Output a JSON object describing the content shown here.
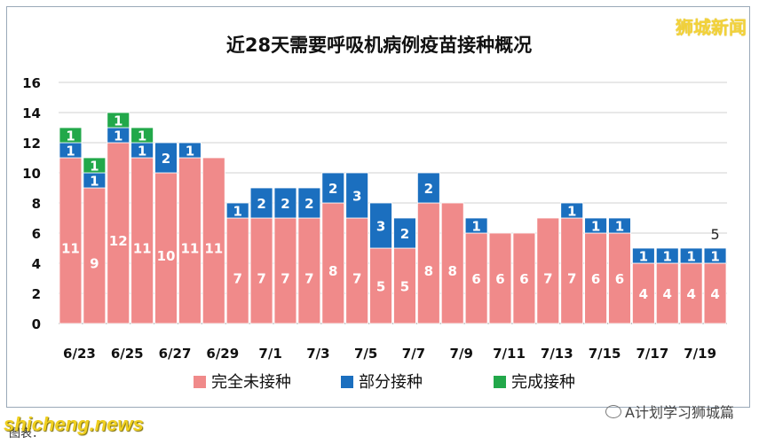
{
  "watermark_top": "狮城新闻",
  "watermark_bottom": "shicheng.news",
  "footer_left": "图表：",
  "footer_right": "A计划学习狮城篇",
  "colors": {
    "unvaccinated": "#f08a8a",
    "partial": "#1b6fbf",
    "full": "#22a84a",
    "grid": "#d0d0d0"
  },
  "chart_data": {
    "type": "bar",
    "stacked": true,
    "title": "近28天需要呼吸机病例疫苗接种概况",
    "categories": [
      "6/23",
      "6/24",
      "6/25",
      "6/26",
      "6/27",
      "6/28",
      "6/29",
      "6/30",
      "7/1",
      "7/2",
      "7/3",
      "7/4",
      "7/5",
      "7/6",
      "7/7",
      "7/8",
      "7/9",
      "7/10",
      "7/11",
      "7/12",
      "7/13",
      "7/14",
      "7/15",
      "7/16",
      "7/17",
      "7/18",
      "7/19",
      "7/20"
    ],
    "tick_labels": [
      "6/23",
      "6/25",
      "6/27",
      "6/29",
      "7/1",
      "7/3",
      "7/5",
      "7/7",
      "7/9",
      "7/11",
      "7/13",
      "7/15",
      "7/17",
      "7/19"
    ],
    "series": [
      {
        "name": "完全未接种",
        "values": [
          11,
          9,
          12,
          11,
          10,
          11,
          11,
          7,
          7,
          7,
          7,
          8,
          7,
          5,
          5,
          8,
          8,
          6,
          6,
          6,
          7,
          7,
          6,
          6,
          4,
          4,
          4,
          4
        ]
      },
      {
        "name": "部分接种",
        "values": [
          1,
          1,
          1,
          1,
          2,
          1,
          0,
          1,
          2,
          2,
          2,
          2,
          3,
          3,
          2,
          2,
          0,
          1,
          0,
          0,
          0,
          1,
          1,
          1,
          1,
          1,
          1,
          1
        ]
      },
      {
        "name": "完成接种",
        "values": [
          1,
          1,
          1,
          1,
          0,
          0,
          0,
          0,
          0,
          0,
          0,
          0,
          0,
          0,
          0,
          0,
          0,
          0,
          0,
          0,
          0,
          0,
          0,
          0,
          0,
          0,
          0,
          0
        ]
      }
    ],
    "total_annotation": {
      "category": "7/20",
      "text": "5"
    },
    "ylim": [
      0,
      16
    ],
    "yticks": [
      0,
      2,
      4,
      6,
      8,
      10,
      12,
      14,
      16
    ],
    "grid": true,
    "legend_position": "bottom"
  }
}
